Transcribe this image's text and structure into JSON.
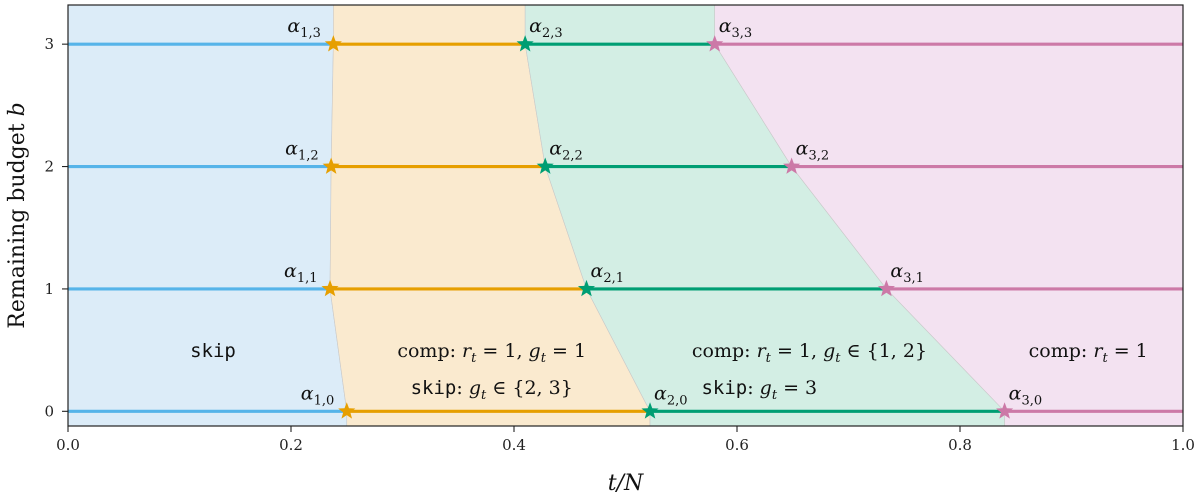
{
  "chart_data": {
    "type": "line",
    "xlabel": "t/N",
    "ylabel": "Remaining budget b",
    "xlim": [
      0.0,
      1.0
    ],
    "ylim": [
      -0.12,
      3.32
    ],
    "x_ticks": [
      "0.0",
      "0.2",
      "0.4",
      "0.6",
      "0.8",
      "1.0"
    ],
    "x_tick_values": [
      0.0,
      0.2,
      0.4,
      0.6,
      0.8,
      1.0
    ],
    "y_ticks": [
      "0",
      "1",
      "2",
      "3"
    ],
    "y_tick_values": [
      0,
      1,
      2,
      3
    ],
    "grid": false,
    "colors": {
      "skip": "#56B4E9",
      "group1": "#E69F00",
      "group2": "#009E73",
      "group3": "#CC79A7",
      "region_skip": "#dcecf8",
      "region_1": "#faeacf",
      "region_2": "#d3eee4",
      "region_3": "#f3e2f1"
    },
    "thresholds": [
      {
        "name": "α1,0",
        "sub": "1,0",
        "group": 1,
        "b": 0,
        "x": 0.25
      },
      {
        "name": "α1,1",
        "sub": "1,1",
        "group": 1,
        "b": 1,
        "x": 0.235
      },
      {
        "name": "α1,2",
        "sub": "1,2",
        "group": 1,
        "b": 2,
        "x": 0.236
      },
      {
        "name": "α1,3",
        "sub": "1,3",
        "group": 1,
        "b": 3,
        "x": 0.238
      },
      {
        "name": "α2,0",
        "sub": "2,0",
        "group": 2,
        "b": 0,
        "x": 0.522
      },
      {
        "name": "α2,1",
        "sub": "2,1",
        "group": 2,
        "b": 1,
        "x": 0.465
      },
      {
        "name": "α2,2",
        "sub": "2,2",
        "group": 2,
        "b": 2,
        "x": 0.428
      },
      {
        "name": "α2,3",
        "sub": "2,3",
        "group": 2,
        "b": 3,
        "x": 0.41
      },
      {
        "name": "α3,0",
        "sub": "3,0",
        "group": 3,
        "b": 0,
        "x": 0.84
      },
      {
        "name": "α3,1",
        "sub": "3,1",
        "group": 3,
        "b": 1,
        "x": 0.734
      },
      {
        "name": "α3,2",
        "sub": "3,2",
        "group": 3,
        "b": 2,
        "x": 0.649
      },
      {
        "name": "α3,3",
        "sub": "3,3",
        "group": 3,
        "b": 3,
        "x": 0.58
      }
    ],
    "annotations": [
      {
        "region": "skip",
        "parts": [
          {
            "t": "skip",
            "s": "mono"
          }
        ],
        "x": 0.13,
        "y": 0.5
      },
      {
        "region": "group1-top",
        "parts": [
          {
            "t": "comp: ",
            "s": ""
          },
          {
            "t": "r",
            "s": "ital"
          },
          {
            "t": "t",
            "s": "sub"
          },
          {
            "t": " = 1, ",
            "s": ""
          },
          {
            "t": "g",
            "s": "ital"
          },
          {
            "t": "t",
            "s": "sub"
          },
          {
            "t": " = 1",
            "s": ""
          }
        ],
        "x": 0.38,
        "y": 0.5
      },
      {
        "region": "group1-bottom",
        "parts": [
          {
            "t": "skip",
            "s": "mono"
          },
          {
            "t": ": ",
            "s": ""
          },
          {
            "t": "g",
            "s": "ital"
          },
          {
            "t": "t",
            "s": "sub"
          },
          {
            "t": " ∈ {2, 3}",
            "s": ""
          }
        ],
        "x": 0.38,
        "y": 0.2
      },
      {
        "region": "group2-top",
        "parts": [
          {
            "t": "comp: ",
            "s": ""
          },
          {
            "t": "r",
            "s": "ital"
          },
          {
            "t": "t",
            "s": "sub"
          },
          {
            "t": " = 1, ",
            "s": ""
          },
          {
            "t": "g",
            "s": "ital"
          },
          {
            "t": "t",
            "s": "sub"
          },
          {
            "t": " ∈ {1, 2}",
            "s": ""
          }
        ],
        "x": 0.665,
        "y": 0.5
      },
      {
        "region": "group2-bottom",
        "parts": [
          {
            "t": "skip",
            "s": "mono"
          },
          {
            "t": ": ",
            "s": ""
          },
          {
            "t": "g",
            "s": "ital"
          },
          {
            "t": "t",
            "s": "sub"
          },
          {
            "t": " = 3",
            "s": ""
          }
        ],
        "x": 0.62,
        "y": 0.2
      },
      {
        "region": "group3",
        "parts": [
          {
            "t": "comp: ",
            "s": ""
          },
          {
            "t": "r",
            "s": "ital"
          },
          {
            "t": "t",
            "s": "sub"
          },
          {
            "t": " = 1",
            "s": ""
          }
        ],
        "x": 0.915,
        "y": 0.5
      }
    ]
  }
}
